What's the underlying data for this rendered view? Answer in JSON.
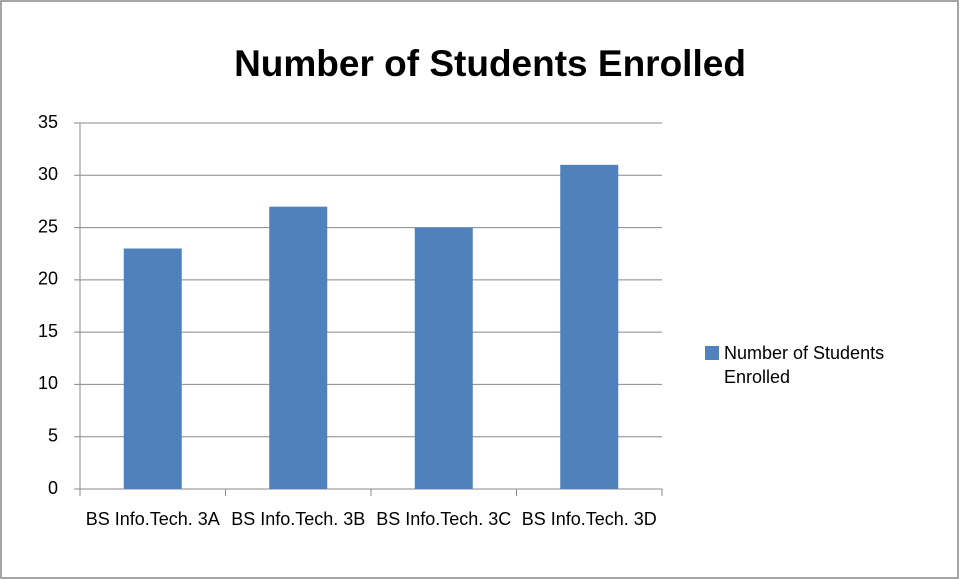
{
  "chart_data": {
    "type": "bar",
    "title": "Number of Students Enrolled",
    "categories": [
      "BS Info.Tech. 3A",
      "BS Info.Tech. 3B",
      "BS Info.Tech. 3C",
      "BS Info.Tech. 3D"
    ],
    "series": [
      {
        "name": "Number of Students Enrolled",
        "color": "#4f81bd",
        "values": [
          23,
          27,
          25,
          31
        ]
      }
    ],
    "ylim": [
      0,
      35
    ],
    "yticks": [
      0,
      5,
      10,
      15,
      20,
      25,
      30,
      35
    ],
    "grid": true,
    "legend": "right"
  }
}
